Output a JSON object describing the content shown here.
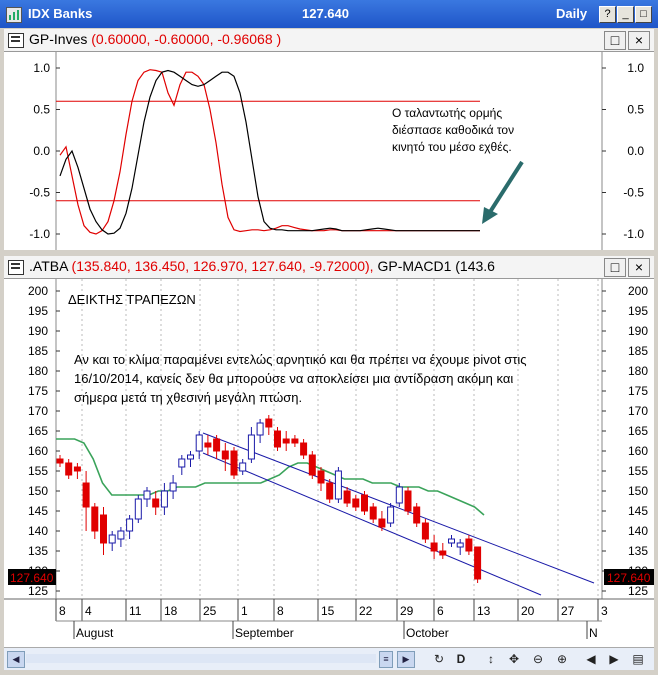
{
  "window": {
    "title": "IDX Banks",
    "price": "127.640",
    "period": "Daily",
    "buttons": [
      "?",
      "_",
      "□",
      "×"
    ]
  },
  "oscillator_pane": {
    "name": "GP-Inves",
    "values": "(0.60000, -0.60000, -0.96068 )",
    "buttons": [
      "□",
      "×"
    ],
    "annotation_lines": [
      "Ο ταλαντωτής ορμής",
      "διέσπασε καθοδικά τον",
      "κινητό του μέσο εχθές."
    ],
    "y_ticks": [
      "1.0",
      "0.5",
      "0.0",
      "-0.5",
      "-1.0"
    ]
  },
  "price_pane": {
    "name": ".ATBA",
    "values": "(135.840, 136.450, 126.970, 127.640, -9.72000),",
    "indicator": "GP-MACD1 (143.6",
    "buttons": [
      "□",
      "×"
    ],
    "title_text": "ΔΕΙΚΤΗΣ ΤΡΑΠΕΖΩΝ",
    "note_lines": [
      "Αν και το κλίμα παραμένει εντελώς αρνητικό και θα πρέπει να έχουμε pivot στις",
      "16/10/2014, κανείς δεν θα μπορούσε να αποκλείσει μια αντίδραση ακόμη και",
      "σήμερα μετά τη χθεσινή μεγάλη πτώση."
    ],
    "y_ticks": [
      "200",
      "195",
      "190",
      "185",
      "180",
      "175",
      "170",
      "165",
      "160",
      "155",
      "150",
      "145",
      "140",
      "135",
      "130",
      "125"
    ],
    "last_price_tag": "127.640"
  },
  "x_axis": {
    "day_labels": [
      "8",
      "4",
      "11",
      "18",
      "25",
      "1",
      "8",
      "15",
      "22",
      "29",
      "6",
      "13",
      "20",
      "27",
      "3"
    ],
    "month_labels": [
      "August",
      "September",
      "October",
      "N"
    ]
  },
  "chart_data": [
    {
      "type": "line",
      "series": [
        {
          "name": "GP-Inves",
          "color": "#000000"
        },
        {
          "name": "",
          "color": "#e00000"
        }
      ],
      "reference_lines": [
        0.6,
        -0.6
      ],
      "ylim": [
        -1.2,
        1.2
      ],
      "x": [
        0,
        1,
        2,
        3,
        4,
        5,
        6,
        7,
        8,
        9,
        10,
        11,
        12,
        13,
        14,
        15,
        16,
        17,
        18,
        19,
        20,
        21,
        22,
        23,
        24,
        25,
        26,
        27,
        28,
        29,
        30,
        31,
        32,
        33,
        34,
        35,
        36,
        37,
        38,
        39,
        40,
        41,
        42,
        43,
        44,
        45,
        46,
        47,
        48,
        49,
        50,
        51,
        52,
        53,
        54,
        55,
        56,
        57,
        58,
        59,
        60,
        61,
        62,
        63,
        64,
        65,
        66,
        67,
        68,
        69,
        70
      ],
      "black": [
        -0.3,
        -0.1,
        0.0,
        -0.2,
        -0.45,
        -0.7,
        -0.85,
        -0.95,
        -1.0,
        -0.99,
        -0.93,
        -0.75,
        -0.45,
        -0.05,
        0.35,
        0.65,
        0.85,
        0.95,
        0.97,
        0.95,
        0.9,
        0.85,
        0.8,
        0.78,
        0.8,
        0.85,
        0.9,
        0.95,
        0.95,
        0.9,
        0.7,
        0.35,
        -0.1,
        -0.55,
        -0.85,
        -0.93,
        -0.95,
        -0.95,
        -0.96,
        -0.96,
        -0.96,
        -0.96,
        -0.96,
        -0.95,
        -0.94,
        -0.93,
        -0.94,
        -0.96,
        -0.96,
        -0.96,
        -0.96,
        -0.95,
        -0.94,
        -0.93,
        -0.94,
        -0.95,
        -0.96,
        -0.96,
        -0.96,
        -0.96,
        -0.96,
        -0.96,
        -0.96,
        -0.96,
        -0.96,
        -0.96,
        -0.96,
        -0.96,
        -0.96,
        -0.96,
        -0.96
      ],
      "red": [
        -0.05,
        0.05,
        -0.3,
        -0.65,
        -0.9,
        -0.98,
        -1.0,
        -0.96,
        -0.85,
        -0.6,
        -0.25,
        0.2,
        0.6,
        0.85,
        0.95,
        0.98,
        0.97,
        0.95,
        0.7,
        0.55,
        0.8,
        0.95,
        0.95,
        0.9,
        0.8,
        0.5,
        0.1,
        -0.4,
        -0.8,
        -0.95,
        -0.97,
        -0.96,
        -0.95,
        -0.95,
        -0.96,
        -0.95,
        -0.93,
        -0.9,
        -0.9,
        -0.92,
        -0.94,
        -0.95,
        -0.96,
        -0.96,
        -0.96,
        -0.95,
        -0.95,
        -0.96,
        -0.96,
        -0.96,
        -0.96,
        -0.96,
        -0.96,
        -0.96,
        -0.96,
        -0.96,
        -0.96,
        -0.96,
        -0.96,
        -0.96,
        -0.96,
        -0.96,
        -0.96,
        -0.96,
        -0.96,
        -0.96,
        -0.96,
        -0.96,
        -0.96,
        -0.96,
        -0.96
      ]
    },
    {
      "type": "candlestick",
      "ylim": [
        122,
        202
      ],
      "candles": [
        {
          "o": 158,
          "h": 159,
          "l": 156,
          "c": 157
        },
        {
          "o": 157,
          "h": 158,
          "l": 153,
          "c": 154
        },
        {
          "o": 156,
          "h": 157,
          "l": 153,
          "c": 155
        },
        {
          "o": 152,
          "h": 155,
          "l": 140,
          "c": 146
        },
        {
          "o": 146,
          "h": 147,
          "l": 138,
          "c": 140
        },
        {
          "o": 144,
          "h": 146,
          "l": 134,
          "c": 137
        },
        {
          "o": 137,
          "h": 140,
          "l": 135,
          "c": 139
        },
        {
          "o": 138,
          "h": 141,
          "l": 136,
          "c": 140
        },
        {
          "o": 140,
          "h": 144,
          "l": 138,
          "c": 143
        },
        {
          "o": 143,
          "h": 149,
          "l": 142,
          "c": 148
        },
        {
          "o": 148,
          "h": 151,
          "l": 146,
          "c": 150
        },
        {
          "o": 148,
          "h": 150,
          "l": 144,
          "c": 146
        },
        {
          "o": 146,
          "h": 152,
          "l": 144,
          "c": 150
        },
        {
          "o": 150,
          "h": 154,
          "l": 148,
          "c": 152
        },
        {
          "o": 156,
          "h": 159,
          "l": 154,
          "c": 158
        },
        {
          "o": 158,
          "h": 160,
          "l": 156,
          "c": 159
        },
        {
          "o": 160,
          "h": 165,
          "l": 158,
          "c": 164
        },
        {
          "o": 162,
          "h": 164,
          "l": 159,
          "c": 161
        },
        {
          "o": 163,
          "h": 164,
          "l": 158,
          "c": 160
        },
        {
          "o": 160,
          "h": 162,
          "l": 155,
          "c": 158
        },
        {
          "o": 160,
          "h": 161,
          "l": 153,
          "c": 154
        },
        {
          "o": 155,
          "h": 158,
          "l": 154,
          "c": 157
        },
        {
          "o": 158,
          "h": 166,
          "l": 157,
          "c": 164
        },
        {
          "o": 164,
          "h": 168,
          "l": 162,
          "c": 167
        },
        {
          "o": 168,
          "h": 169,
          "l": 164,
          "c": 166
        },
        {
          "o": 165,
          "h": 166,
          "l": 160,
          "c": 161
        },
        {
          "o": 163,
          "h": 165,
          "l": 160,
          "c": 162
        },
        {
          "o": 163,
          "h": 164,
          "l": 161,
          "c": 162
        },
        {
          "o": 162,
          "h": 163,
          "l": 158,
          "c": 159
        },
        {
          "o": 159,
          "h": 160,
          "l": 153,
          "c": 154
        },
        {
          "o": 155,
          "h": 156,
          "l": 150,
          "c": 152
        },
        {
          "o": 152,
          "h": 153,
          "l": 147,
          "c": 148
        },
        {
          "o": 148,
          "h": 156,
          "l": 147,
          "c": 155
        },
        {
          "o": 150,
          "h": 151,
          "l": 146,
          "c": 147
        },
        {
          "o": 148,
          "h": 149,
          "l": 145,
          "c": 146
        },
        {
          "o": 149,
          "h": 150,
          "l": 144,
          "c": 145
        },
        {
          "o": 146,
          "h": 147,
          "l": 142,
          "c": 143
        },
        {
          "o": 143,
          "h": 145,
          "l": 140,
          "c": 141
        },
        {
          "o": 142,
          "h": 147,
          "l": 141,
          "c": 146
        },
        {
          "o": 147,
          "h": 152,
          "l": 146,
          "c": 151
        },
        {
          "o": 150,
          "h": 151,
          "l": 144,
          "c": 145
        },
        {
          "o": 146,
          "h": 147,
          "l": 141,
          "c": 142
        },
        {
          "o": 142,
          "h": 143,
          "l": 137,
          "c": 138
        },
        {
          "o": 137,
          "h": 139,
          "l": 133,
          "c": 135
        },
        {
          "o": 135,
          "h": 137,
          "l": 133,
          "c": 134
        },
        {
          "o": 137,
          "h": 139,
          "l": 136,
          "c": 138
        },
        {
          "o": 136,
          "h": 138,
          "l": 134,
          "c": 137
        },
        {
          "o": 138,
          "h": 139,
          "l": 134,
          "c": 135
        },
        {
          "o": 136,
          "h": 136,
          "l": 127,
          "c": 128
        }
      ],
      "moving_average": [
        163,
        163,
        163,
        162,
        158,
        152,
        149,
        149,
        149,
        149,
        149,
        150,
        150,
        151,
        151,
        151,
        152,
        152,
        152,
        152,
        152,
        152,
        152,
        153,
        154,
        156,
        157,
        157,
        156,
        155,
        154,
        153,
        153,
        153,
        152,
        152,
        152,
        151,
        151,
        151,
        150,
        150,
        149,
        148,
        147,
        146,
        144
      ],
      "channel_lines": [
        {
          "from": [
            143,
            164.5
          ],
          "to": [
            590,
            127
          ]
        },
        {
          "from": [
            143,
            159.5
          ],
          "to": [
            537,
            124
          ]
        }
      ],
      "last_price": 127.64
    }
  ]
}
